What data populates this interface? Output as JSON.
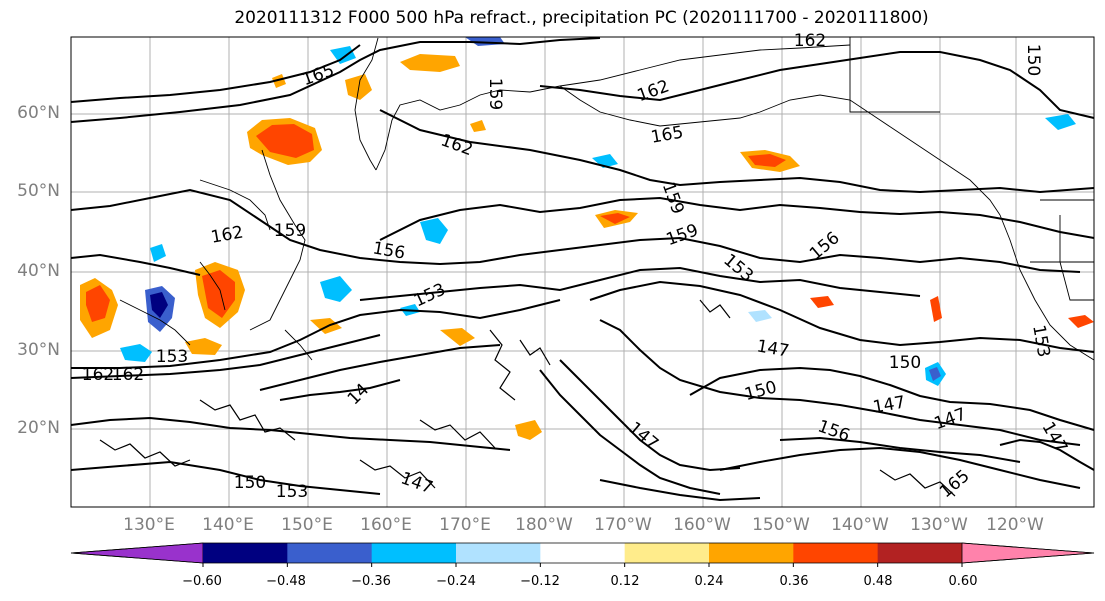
{
  "title": "2020111312 F000 500 hPa refract., precipitation PC (2020111700 - 2020111800)",
  "lat_labels": [
    "60°N",
    "50°N",
    "40°N",
    "30°N",
    "20°N"
  ],
  "lon_labels": [
    "130°E",
    "140°E",
    "150°E",
    "160°E",
    "170°E",
    "180°W",
    "170°W",
    "160°W",
    "150°W",
    "140°W",
    "130°W",
    "120°W"
  ],
  "contour_labels": [
    "162",
    "165",
    "162",
    "165",
    "162",
    "159",
    "159",
    "162",
    "159",
    "156",
    "156",
    "153",
    "153",
    "153",
    "162",
    "147",
    "150",
    "147",
    "150",
    "147",
    "147",
    "147",
    "150",
    "153",
    "156",
    "147",
    "153",
    "162",
    "150",
    "159",
    "165",
    "14"
  ],
  "colorbar": {
    "ticks": [
      "−0.60",
      "−0.48",
      "−0.36",
      "−0.24",
      "−0.12",
      "0.12",
      "0.24",
      "0.36",
      "0.48",
      "0.60"
    ],
    "colors": [
      "#9932cc",
      "#000080",
      "#3a5fcd",
      "#00bfff",
      "#b0e2ff",
      "#ffffff",
      "#ffec8b",
      "#ffa500",
      "#ff4500",
      "#b22222",
      "#ff82ab"
    ]
  },
  "colors": {
    "land": "#ffffff",
    "contour": "#000000",
    "grid": "#b0b0b0",
    "axis_label": "#7f7f7f"
  }
}
